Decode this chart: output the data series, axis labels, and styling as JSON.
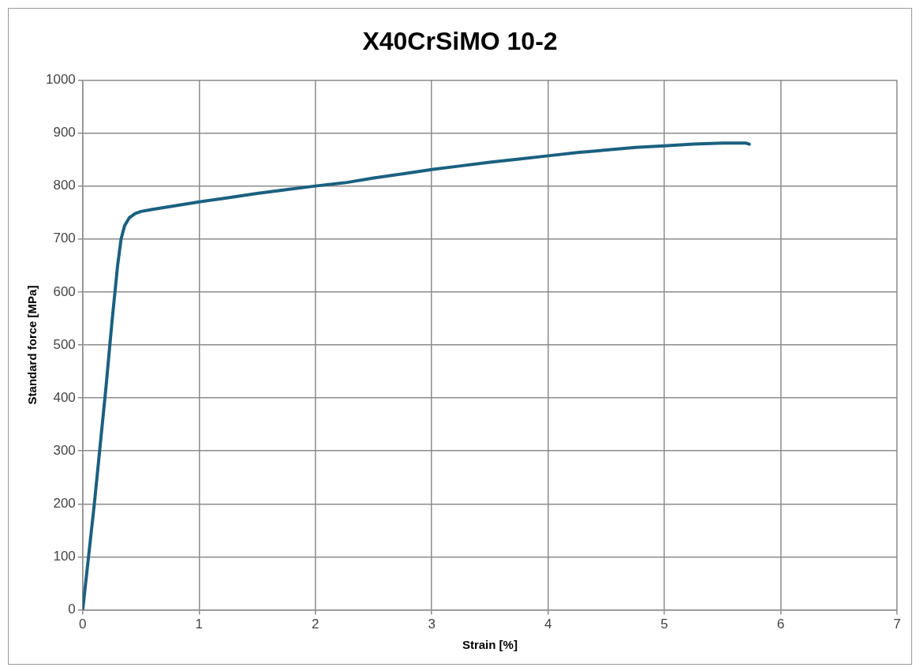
{
  "chart_data": {
    "type": "line",
    "title": "X40CrSiMO 10-2",
    "xlabel": "Strain [%]",
    "ylabel": "Standard force [MPa]",
    "x": [
      0,
      0.05,
      0.1,
      0.15,
      0.2,
      0.25,
      0.3,
      0.33,
      0.36,
      0.4,
      0.45,
      0.5,
      0.6,
      0.8,
      1,
      1.25,
      1.5,
      1.75,
      2,
      2.25,
      2.5,
      2.75,
      3,
      3.25,
      3.5,
      3.75,
      4,
      4.25,
      4.5,
      4.75,
      5,
      5.25,
      5.5,
      5.7,
      5.73
    ],
    "series": [
      {
        "color": "#1a6080",
        "values": [
          0,
          100,
          200,
          310,
          420,
          540,
          650,
          700,
          725,
          740,
          748,
          752,
          756,
          763,
          770,
          778,
          786,
          793,
          800,
          806,
          815,
          823,
          831,
          838,
          845,
          851,
          857,
          863,
          868,
          873,
          876,
          879,
          881,
          881,
          879
        ]
      }
    ],
    "xlim": [
      0,
      7
    ],
    "xticks": [
      0,
      1,
      2,
      3,
      4,
      5,
      6,
      7
    ],
    "ylim": [
      0,
      1000
    ],
    "yticks": [
      0,
      100,
      200,
      300,
      400,
      500,
      600,
      700,
      800,
      900,
      1000
    ],
    "grid": true,
    "legend": false,
    "marker": "none",
    "line_style": "solid"
  }
}
